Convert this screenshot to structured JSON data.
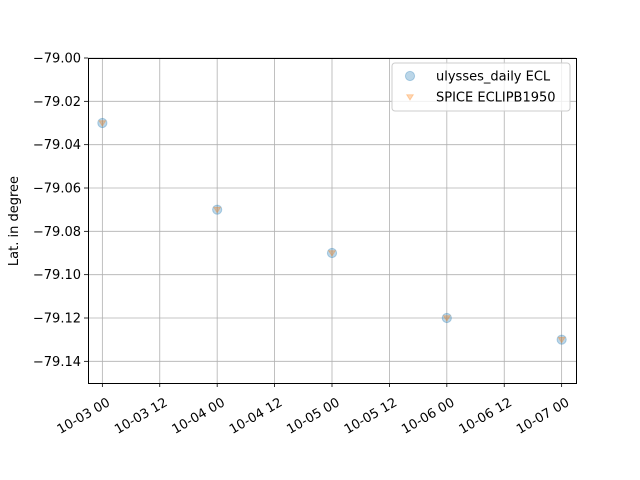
{
  "chart_data": {
    "type": "scatter",
    "title": "",
    "xlabel": "",
    "ylabel": "Lat. in degree",
    "x_type": "datetime",
    "xlim": [
      "2008-10-02T21:00",
      "2008-10-07T03:00"
    ],
    "ylim": [
      -79.15,
      -79.0
    ],
    "grid": true,
    "legend_position": "top-right",
    "x_ticks": [
      {
        "value": "2008-10-03T00:00",
        "label": "10-03 00"
      },
      {
        "value": "2008-10-03T12:00",
        "label": "10-03 12"
      },
      {
        "value": "2008-10-04T00:00",
        "label": "10-04 00"
      },
      {
        "value": "2008-10-04T12:00",
        "label": "10-04 12"
      },
      {
        "value": "2008-10-05T00:00",
        "label": "10-05 00"
      },
      {
        "value": "2008-10-05T12:00",
        "label": "10-05 12"
      },
      {
        "value": "2008-10-06T00:00",
        "label": "10-06 00"
      },
      {
        "value": "2008-10-06T12:00",
        "label": "10-06 12"
      },
      {
        "value": "2008-10-07T00:00",
        "label": "10-07 00"
      }
    ],
    "y_ticks": [
      {
        "value": -79.0,
        "label": "−79.00"
      },
      {
        "value": -79.02,
        "label": "−79.02"
      },
      {
        "value": -79.04,
        "label": "−79.04"
      },
      {
        "value": -79.06,
        "label": "−79.06"
      },
      {
        "value": -79.08,
        "label": "−79.08"
      },
      {
        "value": -79.1,
        "label": "−79.10"
      },
      {
        "value": -79.12,
        "label": "−79.12"
      },
      {
        "value": -79.14,
        "label": "−79.14"
      }
    ],
    "series": [
      {
        "name": "ulysses_daily ECL",
        "marker": "circle",
        "color": "#1f77b4",
        "x": [
          "2008-10-03T00:00",
          "2008-10-04T00:00",
          "2008-10-05T00:00",
          "2008-10-06T00:00",
          "2008-10-07T00:00"
        ],
        "y": [
          -79.03,
          -79.07,
          -79.09,
          -79.12,
          -79.13
        ]
      },
      {
        "name": "SPICE ECLIPB1950",
        "marker": "triangle-down",
        "color": "#ff7f0e",
        "x": [
          "2008-10-03T00:00",
          "2008-10-04T00:00",
          "2008-10-05T00:00",
          "2008-10-06T00:00",
          "2008-10-07T00:00"
        ],
        "y": [
          -79.03,
          -79.07,
          -79.09,
          -79.12,
          -79.13
        ]
      }
    ]
  }
}
